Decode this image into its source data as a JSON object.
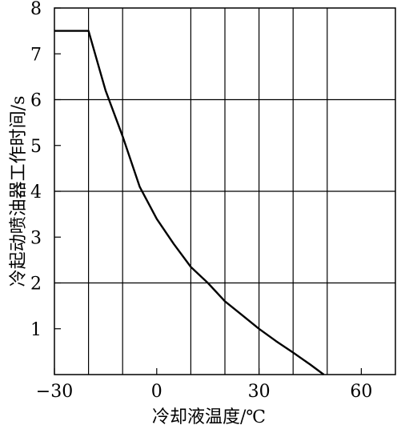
{
  "chart_data": {
    "type": "line",
    "xlabel": "冷却液温度/℃",
    "ylabel": "冷起动喷油器工作时间/s",
    "xlim": [
      -30,
      70
    ],
    "ylim": [
      0,
      8
    ],
    "xticks": [
      {
        "value": -30,
        "label": "−30"
      },
      {
        "value": 0,
        "label": "0"
      },
      {
        "value": 30,
        "label": "30"
      },
      {
        "value": 60,
        "label": "60"
      }
    ],
    "yticks": [
      {
        "value": 1,
        "label": "1"
      },
      {
        "value": 2,
        "label": "2"
      },
      {
        "value": 3,
        "label": "3"
      },
      {
        "value": 4,
        "label": "4"
      },
      {
        "value": 5,
        "label": "5"
      },
      {
        "value": 6,
        "label": "6"
      },
      {
        "value": 7,
        "label": "7"
      },
      {
        "value": 8,
        "label": "8"
      }
    ],
    "grid_x": [
      -20,
      -10,
      10,
      20,
      30,
      40,
      50
    ],
    "grid_y": [
      2,
      4,
      6
    ],
    "grid": true,
    "series": [
      {
        "values": [
          {
            "x": -30,
            "y": 7.5
          },
          {
            "x": -20,
            "y": 7.5
          },
          {
            "x": -15,
            "y": 6.2
          },
          {
            "x": -10,
            "y": 5.2
          },
          {
            "x": -5,
            "y": 4.1
          },
          {
            "x": 0,
            "y": 3.4
          },
          {
            "x": 5,
            "y": 2.85
          },
          {
            "x": 10,
            "y": 2.35
          },
          {
            "x": 15,
            "y": 2.0
          },
          {
            "x": 20,
            "y": 1.6
          },
          {
            "x": 25,
            "y": 1.3
          },
          {
            "x": 30,
            "y": 1.0
          },
          {
            "x": 35,
            "y": 0.73
          },
          {
            "x": 40,
            "y": 0.48
          },
          {
            "x": 45,
            "y": 0.22
          },
          {
            "x": 49,
            "y": 0.0
          }
        ]
      }
    ]
  }
}
